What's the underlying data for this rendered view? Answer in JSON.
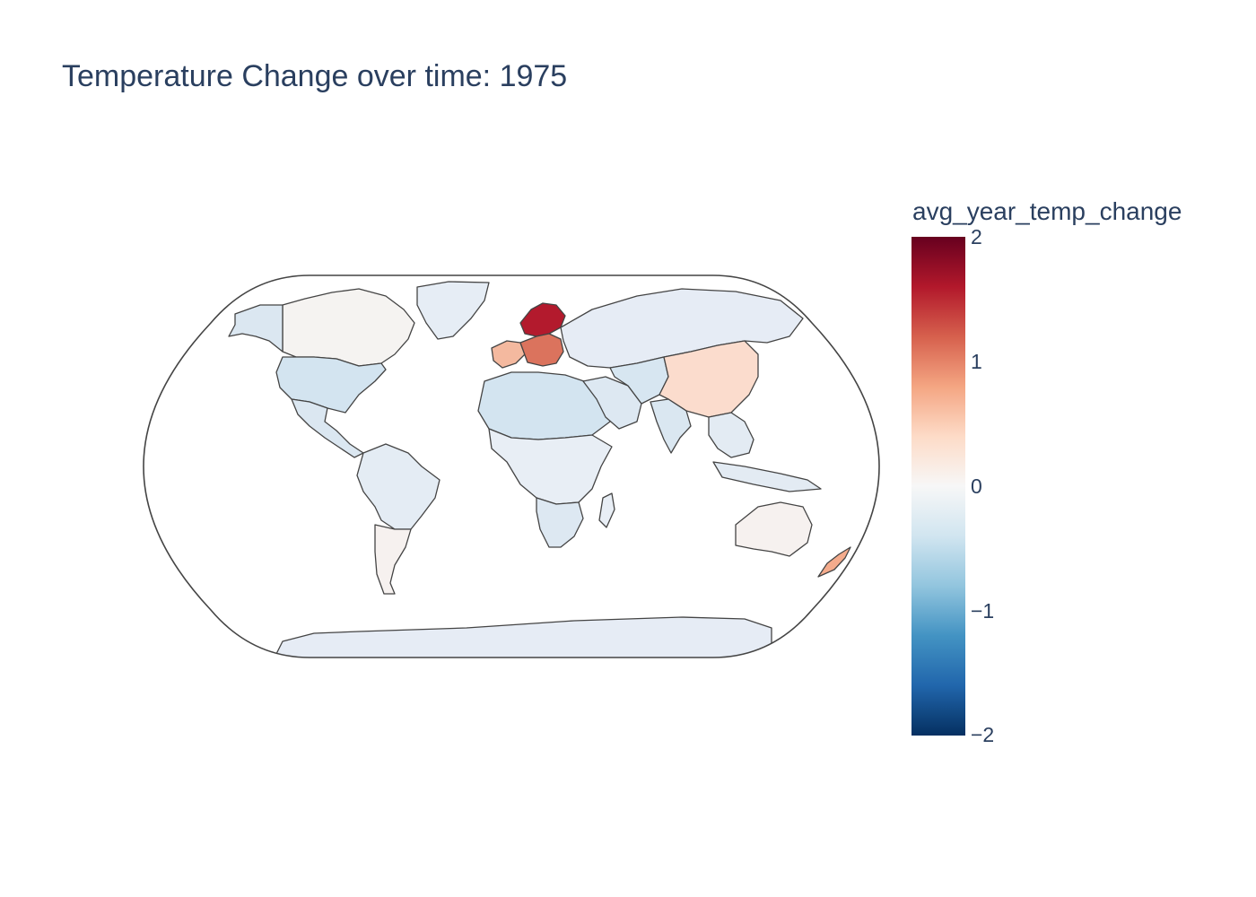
{
  "title": "Temperature Change over time: 1975",
  "colorbar": {
    "title": "avg_year_temp_change",
    "range": [
      -2,
      2
    ],
    "ticks": [
      "2",
      "1",
      "0",
      "−1",
      "−2"
    ],
    "colorscale": [
      "#67001f",
      "#b2182b",
      "#d6604d",
      "#f4a582",
      "#fddbc7",
      "#f7f7f7",
      "#d1e5f0",
      "#92c5de",
      "#4393c3",
      "#2166ac",
      "#053061"
    ]
  },
  "map": {
    "projection": "natural earth",
    "regions": [
      {
        "name": "North America (north)",
        "value": 0.05,
        "color": "#f5f3f1"
      },
      {
        "name": "Alaska",
        "value": -0.3,
        "color": "#dbe7f1"
      },
      {
        "name": "Greenland",
        "value": -0.2,
        "color": "#e6edf5"
      },
      {
        "name": "United States",
        "value": -0.4,
        "color": "#d3e4f0"
      },
      {
        "name": "Central America",
        "value": -0.3,
        "color": "#dbe7f1"
      },
      {
        "name": "South America (north)",
        "value": -0.2,
        "color": "#e4ecf4"
      },
      {
        "name": "South America (south)",
        "value": 0.05,
        "color": "#f6f1ef"
      },
      {
        "name": "Western Europe",
        "value": 0.6,
        "color": "#f4b99f"
      },
      {
        "name": "Scandinavia",
        "value": 1.8,
        "color": "#b31a2d"
      },
      {
        "name": "Central Europe",
        "value": 1.2,
        "color": "#db735d"
      },
      {
        "name": "Russia",
        "value": -0.15,
        "color": "#e6ecf5"
      },
      {
        "name": "North Africa",
        "value": -0.4,
        "color": "#d3e4f0"
      },
      {
        "name": "Africa (central)",
        "value": -0.15,
        "color": "#e8eef5"
      },
      {
        "name": "Southern Africa",
        "value": -0.25,
        "color": "#dde8f2"
      },
      {
        "name": "Middle East",
        "value": -0.25,
        "color": "#dde8f2"
      },
      {
        "name": "Central Asia",
        "value": -0.3,
        "color": "#d7e6f1"
      },
      {
        "name": "China",
        "value": 0.4,
        "color": "#fbdccd"
      },
      {
        "name": "India",
        "value": -0.3,
        "color": "#dae7f1"
      },
      {
        "name": "Southeast Asia",
        "value": -0.2,
        "color": "#e3ebf3"
      },
      {
        "name": "Australia",
        "value": 0.05,
        "color": "#f6f1ef"
      },
      {
        "name": "New Zealand",
        "value": 0.7,
        "color": "#f4ab8c"
      },
      {
        "name": "Antarctica",
        "value": -0.15,
        "color": "#e6ecf5"
      }
    ]
  }
}
